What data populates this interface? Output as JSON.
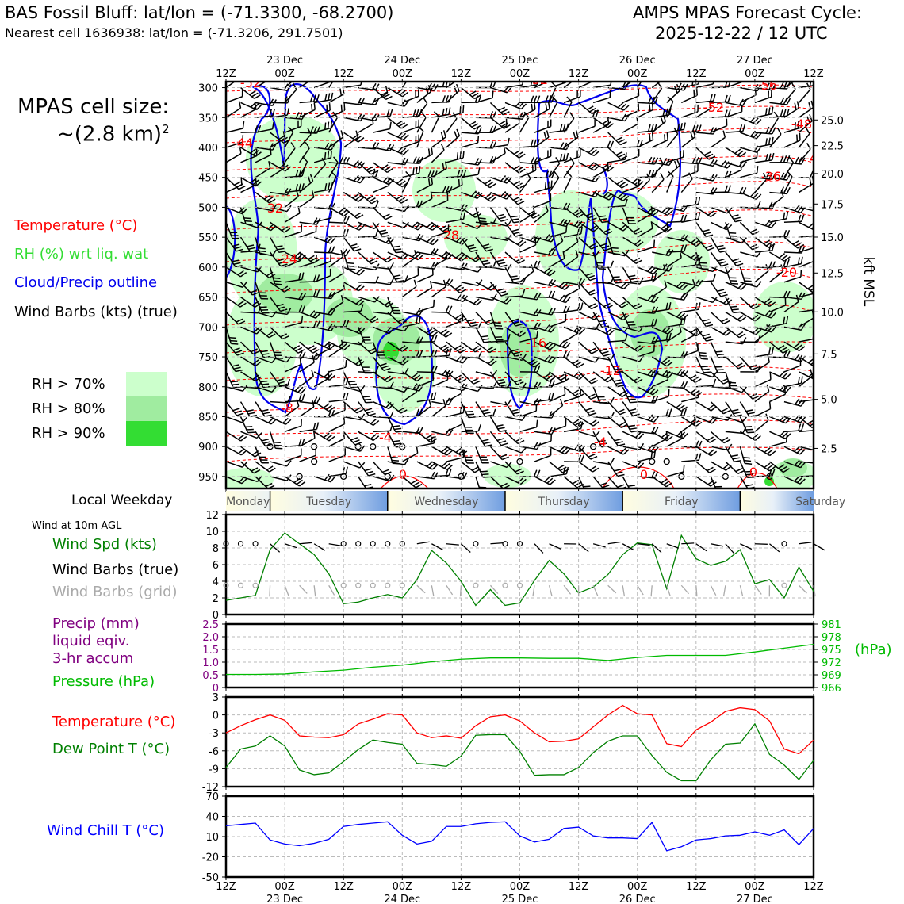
{
  "header": {
    "title_left": "BAS Fossil Bluff: lat/lon = (-71.3300, -68.2700)",
    "subtitle_left": "Nearest cell 1636938: lat/lon = (-71.3206, 291.7501)",
    "title_right_1": "AMPS MPAS Forecast Cycle:",
    "title_right_2": "2025-12-22 / 12 UTC",
    "cell_size_1": "MPAS cell size:",
    "cell_size_2": "~(2.8 km)",
    "cell_size_sup": "2"
  },
  "legend": {
    "temperature": "Temperature (°C)",
    "rh": "RH (%) wrt liq. wat",
    "cloud": "Cloud/Precip outline",
    "barbs": "Wind Barbs (kts) (true)",
    "rh_levels": [
      {
        "label": "RH > 70%",
        "color": "#ccffcc"
      },
      {
        "label": "RH > 80%",
        "color": "#a0eca0"
      },
      {
        "label": "RH > 90%",
        "color": "#33dd33"
      }
    ]
  },
  "colors": {
    "temperature": "#ff0000",
    "rh": "#33dd33",
    "cloud": "#0000ee",
    "pressure": "#00bb00",
    "precip": "#800080",
    "windchill": "#0000ff",
    "grid_barbs": "#aaaaaa",
    "dewpoint": "#008000"
  },
  "time_axis": {
    "top_ticks": [
      "12Z",
      "00Z",
      "12Z",
      "00Z",
      "12Z",
      "00Z",
      "12Z",
      "00Z",
      "12Z",
      "00Z",
      "12Z"
    ],
    "date_labels": [
      "23 Dec",
      "24 Dec",
      "25 Dec",
      "26 Dec",
      "27 Dec"
    ]
  },
  "weekday": {
    "label": "Local Weekday",
    "days": [
      "Monday",
      "Tuesday",
      "Wednesday",
      "Thursday",
      "Friday",
      "Saturday"
    ]
  },
  "surface": {
    "title": "Wind at 10m AGL",
    "wind_spd": "Wind Spd (kts)",
    "barbs_true": "Wind Barbs (true)",
    "barbs_grid": "Wind Barbs (grid)",
    "precip_1": "Precip (mm)",
    "precip_2": "liquid eqiv.",
    "precip_3": "3-hr accum",
    "pressure": "Pressure (hPa)",
    "hpa": "(hPa)",
    "temperature": "Temperature (°C)",
    "dewpoint": "Dew Point T (°C)",
    "windchill": "Wind Chill T (°C)"
  },
  "chart_data": [
    {
      "type": "heatmap",
      "id": "upper_air_time_height",
      "y_axis_left": {
        "label": "",
        "ticks": [
          300,
          350,
          400,
          450,
          500,
          550,
          600,
          650,
          700,
          750,
          800,
          850,
          900,
          950
        ],
        "units": "hPa"
      },
      "y_axis_right": {
        "label": "kft MSL",
        "ticks": [
          25.0,
          22.5,
          20.0,
          17.5,
          15.0,
          12.5,
          10.0,
          7.5,
          5.0,
          2.5
        ]
      },
      "x_ticks": [
        "12Z",
        "00Z",
        "12Z",
        "00Z",
        "12Z",
        "00Z",
        "12Z",
        "00Z",
        "12Z",
        "00Z",
        "12Z"
      ],
      "temperature_contour_labels": [
        "-52",
        "-44",
        "-32",
        "-24",
        "-8",
        "-4",
        "0",
        "-28",
        "-32",
        "-16",
        "-12",
        "-4",
        "0",
        "-52",
        "-48",
        "-56",
        "-36",
        "-20",
        "-4",
        "0"
      ]
    },
    {
      "type": "line",
      "id": "wind_speed",
      "ylim": [
        0,
        12
      ],
      "yticks": [
        0,
        2,
        4,
        6,
        8,
        10,
        12
      ],
      "x_steps": [
        0,
        1,
        2,
        3,
        4,
        5,
        6,
        7,
        8,
        9,
        10,
        11,
        12,
        13,
        14,
        15,
        16,
        17,
        18,
        19,
        20,
        21,
        22,
        23,
        24,
        25,
        26,
        27,
        28,
        29,
        30,
        31,
        32,
        33,
        34,
        35,
        36,
        37,
        38,
        39,
        40
      ],
      "series": [
        {
          "name": "Wind Spd (kts)",
          "values": [
            1.7,
            2.0,
            2.3,
            7.8,
            9.8,
            8.5,
            7.2,
            4.9,
            1.3,
            1.5,
            2.0,
            2.4,
            2.0,
            4.2,
            7.7,
            6.2,
            4.0,
            1.1,
            3.0,
            1.1,
            1.4,
            4.1,
            6.5,
            4.9,
            2.6,
            3.3,
            4.8,
            7.2,
            8.6,
            8.4,
            3.1,
            9.5,
            6.7,
            5.9,
            6.4,
            7.8,
            3.7,
            4.2,
            2.0,
            5.7,
            2.8
          ]
        }
      ]
    },
    {
      "type": "line",
      "id": "precip_pressure",
      "ylim": [
        0,
        2.5
      ],
      "yticks": [
        0,
        0.5,
        1.0,
        1.5,
        2.0,
        2.5
      ],
      "ytick_labels": [
        "0",
        "0.5",
        "1.0",
        "1.5",
        "2.0",
        "2.5"
      ],
      "y2lim": [
        966,
        981
      ],
      "y2ticks": [
        966,
        969,
        972,
        975,
        978,
        981
      ],
      "x_steps": [
        0,
        2,
        4,
        6,
        8,
        10,
        12,
        14,
        16,
        18,
        20,
        22,
        24,
        26,
        28,
        30,
        32,
        34,
        36,
        38,
        40
      ],
      "series": [
        {
          "name": "Pressure (hPa)",
          "values": [
            969.1,
            969.1,
            969.2,
            969.7,
            970.1,
            970.8,
            971.3,
            972.1,
            972.7,
            973.0,
            973.0,
            972.9,
            972.9,
            972.4,
            973.1,
            973.6,
            973.6,
            973.6,
            974.4,
            975.3,
            976.2
          ]
        },
        {
          "name": "Precip (mm)",
          "values": []
        }
      ]
    },
    {
      "type": "line",
      "id": "temperature_dewpoint",
      "ylim": [
        -12,
        3
      ],
      "yticks": [
        -12,
        -9,
        -6,
        -3,
        0,
        3
      ],
      "x_steps": [
        0,
        1,
        2,
        3,
        4,
        5,
        6,
        7,
        8,
        9,
        10,
        11,
        12,
        13,
        14,
        15,
        16,
        17,
        18,
        19,
        20,
        21,
        22,
        23,
        24,
        25,
        26,
        27,
        28,
        29,
        30,
        31,
        32,
        33,
        34,
        35,
        36,
        37,
        38,
        39,
        40
      ],
      "series": [
        {
          "name": "Temperature (°C)",
          "values": [
            -3.0,
            -1.8,
            -0.8,
            0.0,
            -0.9,
            -3.5,
            -3.7,
            -3.8,
            -3.3,
            -1.5,
            -0.7,
            0.2,
            0.0,
            -3.0,
            -3.8,
            -3.5,
            -3.9,
            -1.8,
            -0.3,
            0.0,
            -1.0,
            -3.0,
            -4.5,
            -4.4,
            -4.0,
            -2.0,
            0.0,
            1.6,
            0.2,
            0.0,
            -4.8,
            -5.3,
            -2.5,
            -1.2,
            0.6,
            1.2,
            0.9,
            -1.0,
            -5.7,
            -6.5,
            -4.2
          ]
        },
        {
          "name": "Dew Point T (°C)",
          "values": [
            -8.8,
            -5.7,
            -5.2,
            -3.5,
            -5.2,
            -9.2,
            -10.0,
            -9.7,
            -7.8,
            -5.8,
            -4.2,
            -4.6,
            -4.9,
            -8.1,
            -8.3,
            -8.6,
            -6.9,
            -3.4,
            -3.3,
            -3.3,
            -6.1,
            -10.1,
            -10.0,
            -10.0,
            -8.8,
            -6.3,
            -4.4,
            -3.5,
            -3.5,
            -6.8,
            -9.6,
            -11.0,
            -11.0,
            -7.5,
            -4.9,
            -4.7,
            -1.5,
            -6.6,
            -8.4,
            -10.8,
            -7.6
          ]
        }
      ]
    },
    {
      "type": "line",
      "id": "wind_chill",
      "ylim": [
        -50,
        70
      ],
      "yticks": [
        -50,
        -20,
        10,
        40,
        70
      ],
      "x_steps": [
        0,
        1,
        2,
        3,
        4,
        5,
        6,
        7,
        8,
        9,
        10,
        11,
        12,
        13,
        14,
        15,
        16,
        17,
        18,
        19,
        20,
        21,
        22,
        23,
        24,
        25,
        26,
        27,
        28,
        29,
        30,
        31,
        32,
        33,
        34,
        35,
        36,
        37,
        38,
        39,
        40
      ],
      "series": [
        {
          "name": "Wind Chill T (°C)",
          "values": [
            26.0,
            28.0,
            30.0,
            5.0,
            -1.0,
            -3.5,
            0.0,
            6.0,
            25.0,
            28.0,
            30.0,
            32.0,
            12.0,
            -1.0,
            3.0,
            25.0,
            25.0,
            29.0,
            31.0,
            32.0,
            11.0,
            2.0,
            6.0,
            22.0,
            24.0,
            11.0,
            8.0,
            8.0,
            7.0,
            31.0,
            -11.0,
            -5.0,
            5.0,
            7.0,
            11.0,
            12.0,
            17.0,
            12.0,
            20.0,
            -2.0,
            22.0
          ]
        }
      ]
    }
  ]
}
